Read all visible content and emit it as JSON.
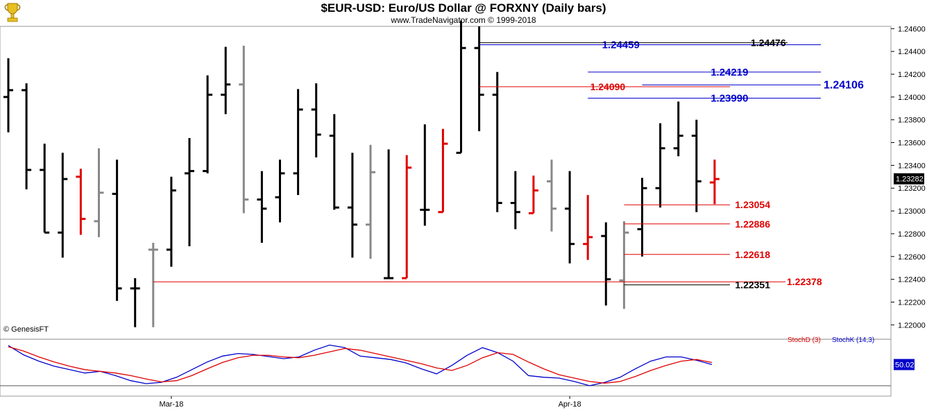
{
  "header": {
    "title": "$EUR-USD:  Euro/US Dollar @ FORXNY  (Daily bars)",
    "subtitle": "www.TradeNavigator.com © 1999-2018",
    "credit": "© GenesisFT",
    "logo_icon": "trophy-logo-icon"
  },
  "colors": {
    "black_bar": "#000000",
    "gray_bar": "#888888",
    "red_bar": "#e00000",
    "blue_level": "#0000cc",
    "red_level": "#e00000",
    "black_level": "#000000",
    "stoch_d": "#e00000",
    "stoch_k": "#0000cc"
  },
  "chart_data": [
    {
      "type": "ohlc",
      "title": "$EUR-USD:  Euro/US Dollar @ FORXNY  (Daily bars)",
      "y_axis": {
        "ticks": [
          "1.22000",
          "1.22200",
          "1.22400",
          "1.22600",
          "1.22800",
          "1.23000",
          "1.23200",
          "1.23400",
          "1.23600",
          "1.23800",
          "1.24000",
          "1.24200",
          "1.24400",
          "1.24600"
        ],
        "range": [
          1.2188,
          1.2462
        ],
        "last_price_label": "1.23282"
      },
      "x_axis": {
        "labels": [
          {
            "label": "Mar-18",
            "bar": 9
          },
          {
            "label": "Apr-18",
            "bar": 31
          }
        ]
      },
      "bars": [
        {
          "o": 1.24,
          "h": 1.2434,
          "l": 1.2369,
          "c": 1.2406,
          "color": "black"
        },
        {
          "o": 1.2406,
          "h": 1.2412,
          "l": 1.2319,
          "c": 1.2336,
          "color": "black"
        },
        {
          "o": 1.2336,
          "h": 1.2359,
          "l": 1.2281,
          "c": 1.2281,
          "color": "black"
        },
        {
          "o": 1.2281,
          "h": 1.2351,
          "l": 1.2259,
          "c": 1.2328,
          "color": "black"
        },
        {
          "o": 1.233,
          "h": 1.2337,
          "l": 1.2279,
          "c": 1.2293,
          "color": "red"
        },
        {
          "o": 1.2291,
          "h": 1.2355,
          "l": 1.2277,
          "c": 1.2316,
          "color": "gray"
        },
        {
          "o": 1.2315,
          "h": 1.2345,
          "l": 1.2221,
          "c": 1.2232,
          "color": "black"
        },
        {
          "o": 1.2232,
          "h": 1.2241,
          "l": 1.2198,
          "c": 1.2232,
          "color": "black"
        },
        {
          "o": 1.2266,
          "h": 1.2272,
          "l": 1.2198,
          "c": 1.2266,
          "color": "gray"
        },
        {
          "o": 1.2266,
          "h": 1.233,
          "l": 1.2251,
          "c": 1.2318,
          "color": "black"
        },
        {
          "o": 1.2333,
          "h": 1.2364,
          "l": 1.2269,
          "c": 1.2335,
          "color": "black"
        },
        {
          "o": 1.2335,
          "h": 1.2419,
          "l": 1.2333,
          "c": 1.2402,
          "color": "black"
        },
        {
          "o": 1.2402,
          "h": 1.2444,
          "l": 1.2385,
          "c": 1.2411,
          "color": "black"
        },
        {
          "o": 1.2411,
          "h": 1.2445,
          "l": 1.2298,
          "c": 1.231,
          "color": "gray"
        },
        {
          "o": 1.231,
          "h": 1.2335,
          "l": 1.2272,
          "c": 1.2302,
          "color": "black"
        },
        {
          "o": 1.2312,
          "h": 1.2345,
          "l": 1.229,
          "c": 1.2333,
          "color": "black"
        },
        {
          "o": 1.2333,
          "h": 1.2407,
          "l": 1.2314,
          "c": 1.2389,
          "color": "black"
        },
        {
          "o": 1.2389,
          "h": 1.2412,
          "l": 1.2347,
          "c": 1.2367,
          "color": "black"
        },
        {
          "o": 1.2366,
          "h": 1.2385,
          "l": 1.2301,
          "c": 1.2303,
          "color": "black"
        },
        {
          "o": 1.2303,
          "h": 1.2351,
          "l": 1.2259,
          "c": 1.2288,
          "color": "black"
        },
        {
          "o": 1.2288,
          "h": 1.2358,
          "l": 1.2258,
          "c": 1.2334,
          "color": "gray"
        },
        {
          "o": 1.2241,
          "h": 1.2354,
          "l": 1.2241,
          "c": 1.2241,
          "color": "black"
        },
        {
          "o": 1.2241,
          "h": 1.2349,
          "l": 1.2241,
          "c": 1.2338,
          "color": "red"
        },
        {
          "o": 1.2301,
          "h": 1.2376,
          "l": 1.2287,
          "c": 1.2301,
          "color": "black"
        },
        {
          "o": 1.2299,
          "h": 1.2372,
          "l": 1.2299,
          "c": 1.2359,
          "color": "red"
        },
        {
          "o": 1.2351,
          "h": 1.2467,
          "l": 1.2351,
          "c": 1.2443,
          "color": "black"
        },
        {
          "o": 1.2443,
          "h": 1.2462,
          "l": 1.237,
          "c": 1.2402,
          "color": "black"
        },
        {
          "o": 1.2402,
          "h": 1.2422,
          "l": 1.2299,
          "c": 1.2307,
          "color": "black"
        },
        {
          "o": 1.2307,
          "h": 1.2335,
          "l": 1.2284,
          "c": 1.2299,
          "color": "black"
        },
        {
          "o": 1.2298,
          "h": 1.2331,
          "l": 1.2298,
          "c": 1.2318,
          "color": "red"
        },
        {
          "o": 1.2326,
          "h": 1.2345,
          "l": 1.2282,
          "c": 1.2302,
          "color": "gray"
        },
        {
          "o": 1.2302,
          "h": 1.2335,
          "l": 1.2254,
          "c": 1.2271,
          "color": "black"
        },
        {
          "o": 1.2271,
          "h": 1.2314,
          "l": 1.2257,
          "c": 1.2277,
          "color": "red"
        },
        {
          "o": 1.2278,
          "h": 1.229,
          "l": 1.2217,
          "c": 1.224,
          "color": "black"
        },
        {
          "o": 1.2239,
          "h": 1.2291,
          "l": 1.2214,
          "c": 1.2281,
          "color": "gray"
        },
        {
          "o": 1.2284,
          "h": 1.2329,
          "l": 1.226,
          "c": 1.232,
          "color": "black"
        },
        {
          "o": 1.232,
          "h": 1.2377,
          "l": 1.2303,
          "c": 1.2355,
          "color": "black"
        },
        {
          "o": 1.2355,
          "h": 1.2396,
          "l": 1.2348,
          "c": 1.2366,
          "color": "black"
        },
        {
          "o": 1.2366,
          "h": 1.238,
          "l": 1.2299,
          "c": 1.2326,
          "color": "black"
        },
        {
          "o": 1.2325,
          "h": 1.2345,
          "l": 1.2306,
          "c": 1.2328,
          "color": "red"
        }
      ],
      "levels": [
        {
          "label": "1.24459",
          "value": 1.24459,
          "color": "blue",
          "from_bar": 26,
          "label_side": "left"
        },
        {
          "label": "1.24476",
          "value": 1.24476,
          "color": "black",
          "from_bar": 26,
          "label_side": "right"
        },
        {
          "label": "1.24219",
          "value": 1.24219,
          "color": "blue",
          "from_bar": 32,
          "label_side": "left"
        },
        {
          "label": "1.24090",
          "value": 1.2409,
          "color": "red",
          "from_bar": 26,
          "label_side": "right"
        },
        {
          "label": "1.24106",
          "value": 1.24106,
          "color": "blue",
          "from_bar": 35,
          "label_side": "far-right"
        },
        {
          "label": "1.23990",
          "value": 1.2399,
          "color": "blue",
          "from_bar": 32,
          "label_side": "left"
        },
        {
          "label": "1.23054",
          "value": 1.23054,
          "color": "red",
          "from_bar": 34,
          "label_side": "right"
        },
        {
          "label": "1.22886",
          "value": 1.22886,
          "color": "red",
          "from_bar": 34,
          "label_side": "right"
        },
        {
          "label": "1.22618",
          "value": 1.22618,
          "color": "red",
          "from_bar": 34,
          "label_side": "right"
        },
        {
          "label": "1.22378",
          "value": 1.22378,
          "color": "red",
          "from_bar": 8,
          "label_side": "far-right"
        },
        {
          "label": "1.22351",
          "value": 1.22351,
          "color": "black",
          "from_bar": 34,
          "label_side": "right"
        }
      ]
    },
    {
      "type": "line",
      "title": "",
      "legend": [
        "StochD (3)",
        "StochK (14,3)"
      ],
      "last_value_label": "50.02",
      "y_range": [
        0,
        100
      ],
      "series": [
        {
          "name": "StochK (14,3)",
          "color": "blue",
          "values": [
            95,
            73,
            58,
            46,
            38,
            30,
            34,
            24,
            12,
            5,
            8,
            20,
            38,
            56,
            70,
            76,
            74,
            69,
            64,
            68,
            84,
            96,
            90,
            70,
            66,
            62,
            54,
            40,
            28,
            48,
            72,
            90,
            78,
            58,
            24,
            20,
            18,
            10,
            0,
            8,
            20,
            40,
            58,
            68,
            68,
            60,
            50
          ]
        },
        {
          "name": "StochD (3)",
          "color": "red",
          "values": [
            92,
            82,
            68,
            56,
            46,
            38,
            34,
            30,
            24,
            16,
            9,
            12,
            24,
            40,
            55,
            66,
            72,
            72,
            68,
            66,
            72,
            80,
            88,
            84,
            76,
            68,
            60,
            52,
            42,
            36,
            48,
            66,
            78,
            74,
            56,
            40,
            26,
            18,
            10,
            6,
            10,
            22,
            36,
            48,
            58,
            62,
            55
          ]
        }
      ]
    }
  ]
}
